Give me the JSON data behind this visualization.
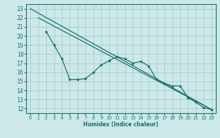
{
  "bg_color": "#cce8e8",
  "grid_color": "#aacfcf",
  "line_color": "#1a7070",
  "xlabel": "Humidex (Indice chaleur)",
  "xlim": [
    -0.5,
    23.5
  ],
  "ylim": [
    11.5,
    23.5
  ],
  "xticks": [
    0,
    1,
    2,
    3,
    4,
    5,
    6,
    7,
    8,
    9,
    10,
    11,
    12,
    13,
    14,
    15,
    16,
    17,
    18,
    19,
    20,
    21,
    22,
    23
  ],
  "yticks": [
    12,
    13,
    14,
    15,
    16,
    17,
    18,
    19,
    20,
    21,
    22,
    23
  ],
  "line1_x": [
    0,
    23
  ],
  "line1_y": [
    23.0,
    11.9
  ],
  "line2_x": [
    1,
    23
  ],
  "line2_y": [
    22.0,
    11.9
  ],
  "line3_x": [
    2,
    3,
    4,
    5,
    6,
    7,
    8,
    9,
    10,
    11,
    12,
    13,
    14,
    15,
    16,
    17,
    18,
    19,
    20,
    21,
    22,
    23
  ],
  "line3_y": [
    20.5,
    19.0,
    17.5,
    15.2,
    15.2,
    15.3,
    16.0,
    16.8,
    17.3,
    17.7,
    17.5,
    17.0,
    17.2,
    16.7,
    15.2,
    14.8,
    14.5,
    14.5,
    13.2,
    12.7,
    12.1,
    11.9
  ]
}
